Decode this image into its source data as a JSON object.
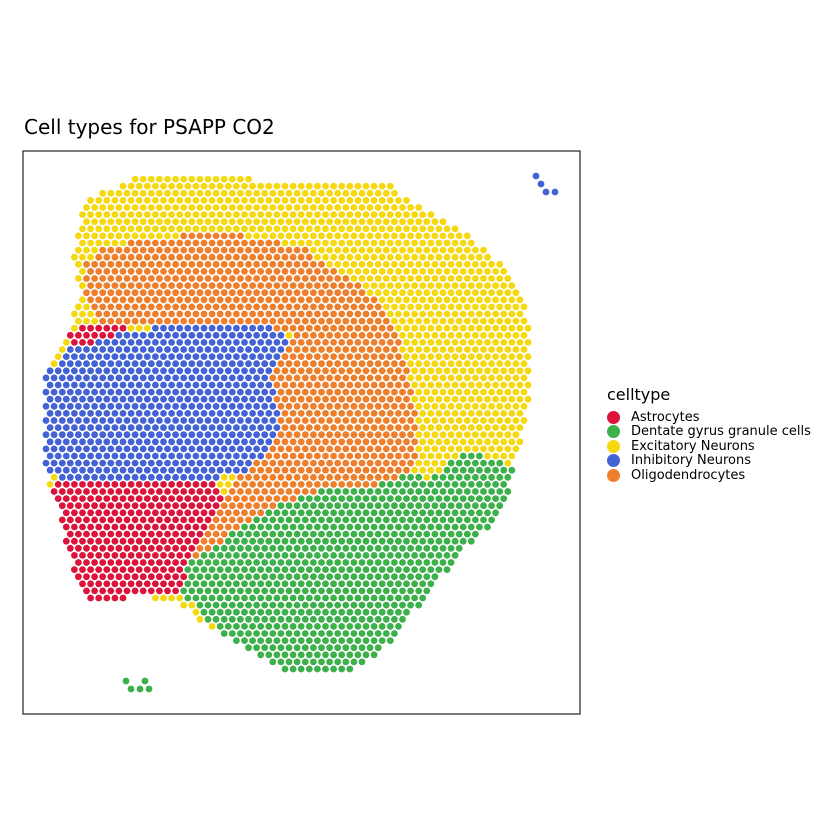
{
  "chart_data": {
    "type": "scatter",
    "title": "Cell types for PSAPP CO2",
    "xlabel": "",
    "ylabel": "",
    "axes_visible": false,
    "grid": false,
    "legend_position": "right",
    "legend": {
      "title": "celltype",
      "entries": [
        {
          "label": "Astrocytes",
          "color": "#DC143C"
        },
        {
          "label": "Dentate gyrus granule cells",
          "color": "#3CB04A"
        },
        {
          "label": "Excitatory Neurons",
          "color": "#F5D80F"
        },
        {
          "label": "Inhibitory Neurons",
          "color": "#4262D6"
        },
        {
          "label": "Oligodendrocytes",
          "color": "#F07F2C"
        }
      ]
    },
    "series": [
      {
        "name": "Astrocytes",
        "color": "#DC143C"
      },
      {
        "name": "Dentate gyrus granule cells",
        "color": "#3CB04A"
      },
      {
        "name": "Excitatory Neurons",
        "color": "#F5D80F"
      },
      {
        "name": "Inhibitory Neurons",
        "color": "#4262D6"
      },
      {
        "name": "Oligodendrocytes",
        "color": "#F07F2C"
      }
    ]
  }
}
